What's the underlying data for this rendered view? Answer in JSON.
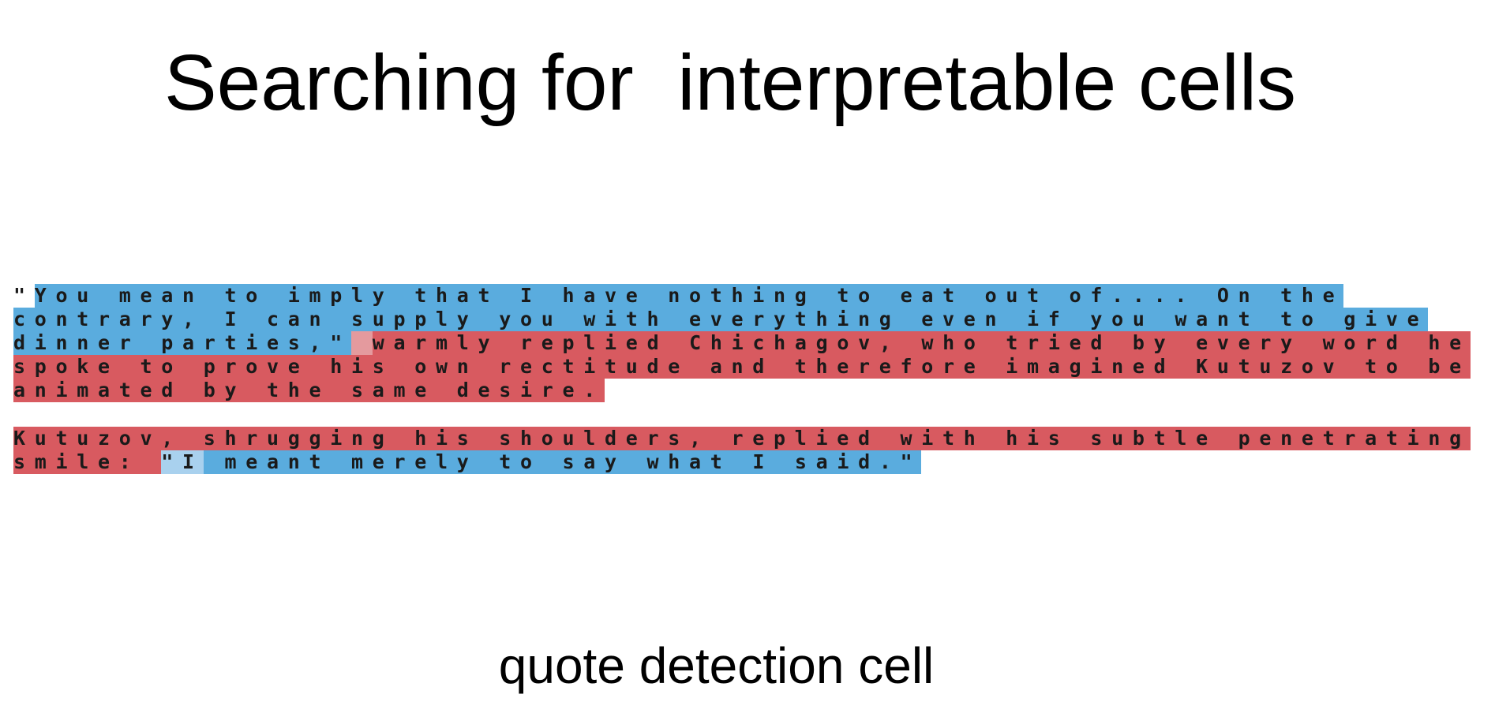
{
  "title": "Searching for  interpretable cells",
  "caption": "quote detection cell",
  "colors": {
    "quote_active": "#5aacde",
    "quote_weak": "#a9d1ee",
    "non_quote": "#d85a60",
    "non_quote_weak": "#e49a9e",
    "text": "#1a1a1a"
  },
  "paragraphs": [
    {
      "lines": [
        [
          {
            "t": "\"",
            "c": "w"
          },
          {
            "t": "You mean to imply that I have nothing to eat out of.... On the",
            "c": "q"
          }
        ],
        [
          {
            "t": "contrary, I can supply you with everything even if you want to give",
            "c": "q"
          }
        ],
        [
          {
            "t": "dinner parties,\"",
            "c": "q"
          },
          {
            "t": " ",
            "c": "ln"
          },
          {
            "t": "warmly replied Chichagov, who tried by every word he",
            "c": "n"
          }
        ],
        [
          {
            "t": "spoke to prove his own rectitude and therefore imagined Kutuzov to be",
            "c": "n"
          }
        ],
        [
          {
            "t": "animated by the same desire.",
            "c": "n"
          }
        ]
      ]
    },
    {
      "lines": [
        [
          {
            "t": "Kutuzov, shrugging his shoulders, replied with his subtle penetrating",
            "c": "n"
          }
        ],
        [
          {
            "t": "smile: ",
            "c": "n"
          },
          {
            "t": "\"I",
            "c": "lq"
          },
          {
            "t": " meant merely to say what I said.\"",
            "c": "q"
          }
        ]
      ]
    }
  ]
}
